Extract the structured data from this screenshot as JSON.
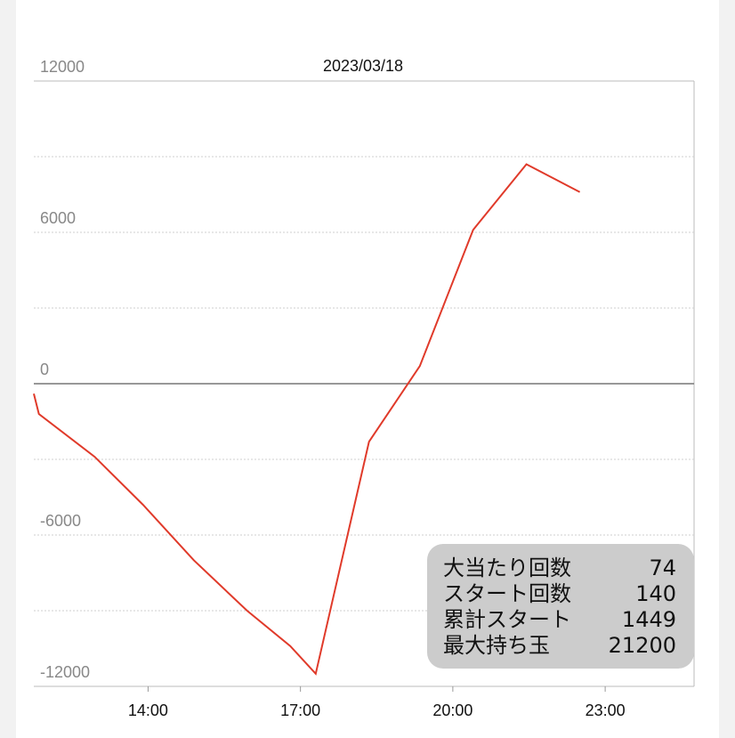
{
  "chart_data": {
    "type": "line",
    "title": "2023/03/18",
    "xlabel": "",
    "ylabel": "",
    "ylim": [
      -12000,
      12000
    ],
    "yticks": [
      12000,
      6000,
      0,
      -6000,
      -12000
    ],
    "xtick_labels": [
      "14:00",
      "17:00",
      "20:00",
      "23:00"
    ],
    "xtick_hours": [
      14,
      17,
      20,
      23
    ],
    "xlim_hours": [
      11.75,
      24.75
    ],
    "grid": true,
    "line_color": "#e03a2a",
    "series": [
      {
        "x_hours": [
          11.75,
          11.85,
          12.95,
          13.9,
          14.9,
          15.95,
          16.8,
          17.3,
          18.35,
          19.35,
          20.4,
          21.45,
          22.5
        ],
        "values": [
          -400,
          -1200,
          -2900,
          -4800,
          -7000,
          -9000,
          -10400,
          -11500,
          -2300,
          700,
          6100,
          8700,
          7600
        ]
      }
    ]
  },
  "stats": [
    {
      "label": "大当たり回数",
      "value": "74"
    },
    {
      "label": "スタート回数",
      "value": "140"
    },
    {
      "label": "累計スタート",
      "value": "1449"
    },
    {
      "label": "最大持ち玉",
      "value": "21200"
    }
  ]
}
